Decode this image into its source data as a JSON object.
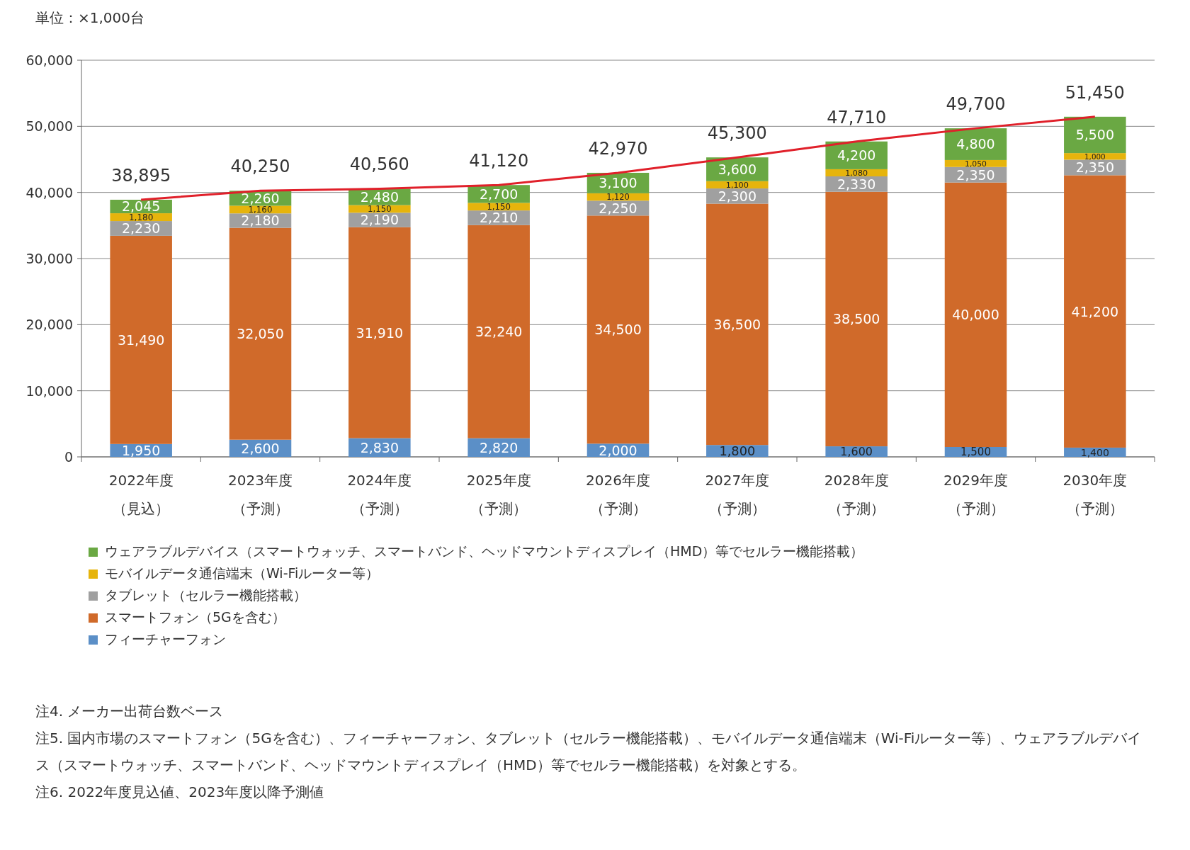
{
  "chart_data": {
    "type": "bar",
    "stacked": true,
    "categories": [
      "2022年度（見込）",
      "2023年度（予測）",
      "2024年度（予測）",
      "2025年度（予測）",
      "2026年度（予測）",
      "2027年度（予測）",
      "2028年度（予測）",
      "2029年度（予測）",
      "2030年度（予測）"
    ],
    "series": [
      {
        "name": "フィーチャーフォン",
        "color": "#5b8fc7",
        "values": [
          1950,
          2600,
          2830,
          2820,
          2000,
          1800,
          1600,
          1500,
          1400
        ],
        "value_labels": [
          "1,950",
          "2,600",
          "2,830",
          "2,820",
          "2,000",
          "1,800",
          "1,600",
          "1,500",
          "1,400"
        ]
      },
      {
        "name": "スマートフォン（5Gを含む）",
        "color": "#d06a2a",
        "values": [
          31490,
          32050,
          31910,
          32240,
          34500,
          36500,
          38500,
          40000,
          41200
        ],
        "value_labels": [
          "31,490",
          "32,050",
          "31,910",
          "32,240",
          "34,500",
          "36,500",
          "38,500",
          "40,000",
          "41,200"
        ]
      },
      {
        "name": "タブレット（セルラー機能搭載）",
        "color": "#a0a0a0",
        "values": [
          2230,
          2180,
          2190,
          2210,
          2250,
          2300,
          2330,
          2350,
          2350
        ],
        "value_labels": [
          "2,230",
          "2,180",
          "2,190",
          "2,210",
          "2,250",
          "2,300",
          "2,330",
          "2,350",
          "2,350"
        ]
      },
      {
        "name": "モバイルデータ通信端末（Wi-Fiルーター等）",
        "color": "#e6b40c",
        "values": [
          1180,
          1160,
          1150,
          1150,
          1120,
          1100,
          1080,
          1050,
          1000
        ],
        "value_labels": [
          "1,180",
          "1,160",
          "1,150",
          "1,150",
          "1,120",
          "1,100",
          "1,080",
          "1,050",
          "1,000"
        ]
      },
      {
        "name": "ウェアラブルデバイス（スマートウォッチ、スマートバンド、ヘッドマウントディスプレイ（HMD）等でセルラー機能搭載）",
        "color": "#6aa843",
        "values": [
          2045,
          2260,
          2480,
          2700,
          3100,
          3600,
          4200,
          4800,
          5500
        ],
        "value_labels": [
          "2,045",
          "2,260",
          "2,480",
          "2,700",
          "3,100",
          "3,600",
          "4,200",
          "4,800",
          "5,500"
        ]
      },
      {
        "type": "line",
        "color": "#e0202a",
        "values": [
          38895,
          40250,
          40560,
          41120,
          42970,
          45300,
          47710,
          49700,
          51450
        ]
      }
    ],
    "totals": [
      "38,895",
      "40,250",
      "40,560",
      "41,120",
      "42,970",
      "45,300",
      "47,710",
      "49,700",
      "51,450"
    ],
    "ylim": [
      0,
      60000
    ],
    "yticks": [
      {
        "value": 0,
        "label": "0"
      },
      {
        "value": 10000,
        "label": "10,000"
      },
      {
        "value": 20000,
        "label": "20,000"
      },
      {
        "value": 30000,
        "label": "30,000"
      },
      {
        "value": 40000,
        "label": "40,000"
      },
      {
        "value": 50000,
        "label": "50,000"
      },
      {
        "value": 60000,
        "label": "60,000"
      }
    ],
    "grid": "y",
    "legend": "bottom",
    "marker": "none",
    "annotations": [
      "単位：×1,000台",
      "注4. メーカー出荷台数ベース",
      "注5. 国内市場のスマートフォン（5Gを含む）、フィーチャーフォン、タブレット（セルラー機能搭載）、モバイルデータ通信端末（Wi-Fiルーター等）、ウェアラブルデバイス（スマートウォッチ、スマートバンド、ヘッドマウントディスプレイ（HMD）等でセルラー機能搭載）を対象とする。",
      "注6. 2022年度見込値、2023年度以降予測値"
    ]
  }
}
